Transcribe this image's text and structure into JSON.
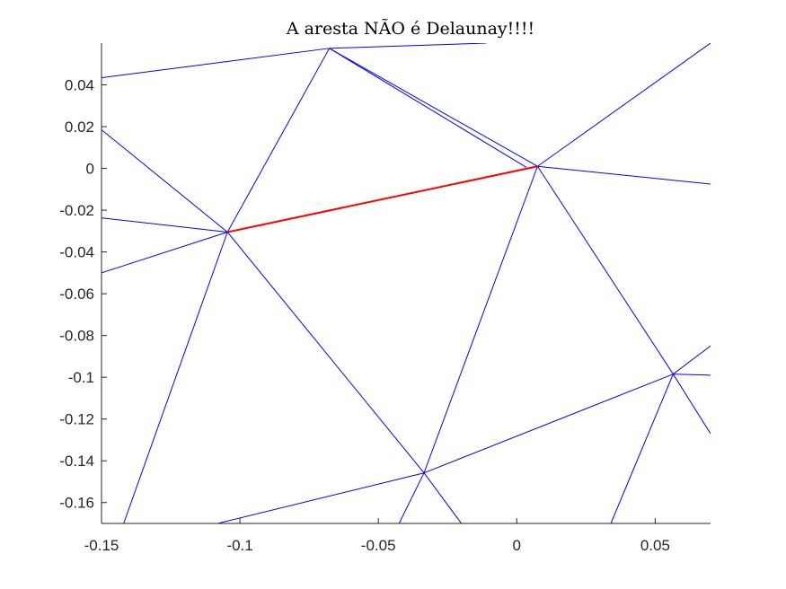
{
  "chart_data": {
    "type": "line",
    "title": "A aresta NÃO é Delaunay!!!!",
    "xlabel": "",
    "ylabel": "",
    "xlim": [
      -0.15,
      0.07
    ],
    "ylim": [
      -0.17,
      0.06
    ],
    "xticks": [
      -0.15,
      -0.1,
      -0.05,
      0,
      0.05
    ],
    "xtick_labels": [
      "-0.15",
      "-0.1",
      "-0.05",
      "0",
      "0.05"
    ],
    "yticks": [
      0.04,
      0.02,
      0,
      -0.02,
      -0.04,
      -0.06,
      -0.08,
      -0.1,
      -0.12,
      -0.14,
      -0.16
    ],
    "ytick_labels": [
      "0.04",
      "0.02",
      "0",
      "-0.02",
      "-0.04",
      "-0.06",
      "-0.08",
      "-0.1",
      "-0.12",
      "-0.14",
      "-0.16"
    ],
    "grid": false,
    "legend": "none",
    "colors": {
      "edges": "#0000ff",
      "highlight": "#ff0000",
      "axes": "#262626"
    },
    "edges": [
      [
        -0.15,
        0.0434,
        -0.0677,
        0.0575
      ],
      [
        -0.0677,
        0.0575,
        -0.011,
        0.06
      ],
      [
        -0.0677,
        0.0575,
        -0.1045,
        -0.0305
      ],
      [
        -0.0677,
        0.0575,
        0.0075,
        0.001
      ],
      [
        -0.0677,
        0.0575,
        0.0035,
        0.0005
      ],
      [
        -0.15,
        0.0185,
        -0.1045,
        -0.0305
      ],
      [
        -0.15,
        -0.0237,
        -0.1045,
        -0.0305
      ],
      [
        -0.15,
        -0.05,
        -0.1045,
        -0.0305
      ],
      [
        -0.1045,
        -0.0305,
        0.0075,
        0.001
      ],
      [
        -0.1045,
        -0.0305,
        -0.142,
        -0.17
      ],
      [
        -0.1045,
        -0.0305,
        -0.0335,
        -0.1458
      ],
      [
        0.0075,
        0.001,
        0.07,
        0.06
      ],
      [
        0.0075,
        0.001,
        0.07,
        -0.0075
      ],
      [
        0.0075,
        0.001,
        -0.0335,
        -0.1458
      ],
      [
        0.0075,
        0.001,
        0.0565,
        -0.0985
      ],
      [
        -0.0335,
        -0.1458,
        0.0565,
        -0.0985
      ],
      [
        -0.0335,
        -0.1458,
        -0.108,
        -0.17
      ],
      [
        -0.0335,
        -0.1458,
        -0.0425,
        -0.17
      ],
      [
        -0.0335,
        -0.1458,
        -0.02,
        -0.17
      ],
      [
        0.0565,
        -0.0985,
        0.07,
        -0.085
      ],
      [
        0.0565,
        -0.0985,
        0.07,
        -0.099
      ],
      [
        0.0565,
        -0.0985,
        0.07,
        -0.127
      ],
      [
        0.0565,
        -0.0985,
        0.034,
        -0.17
      ]
    ],
    "highlight_edge": [
      -0.1045,
      -0.0305,
      0.0075,
      0.001
    ]
  }
}
